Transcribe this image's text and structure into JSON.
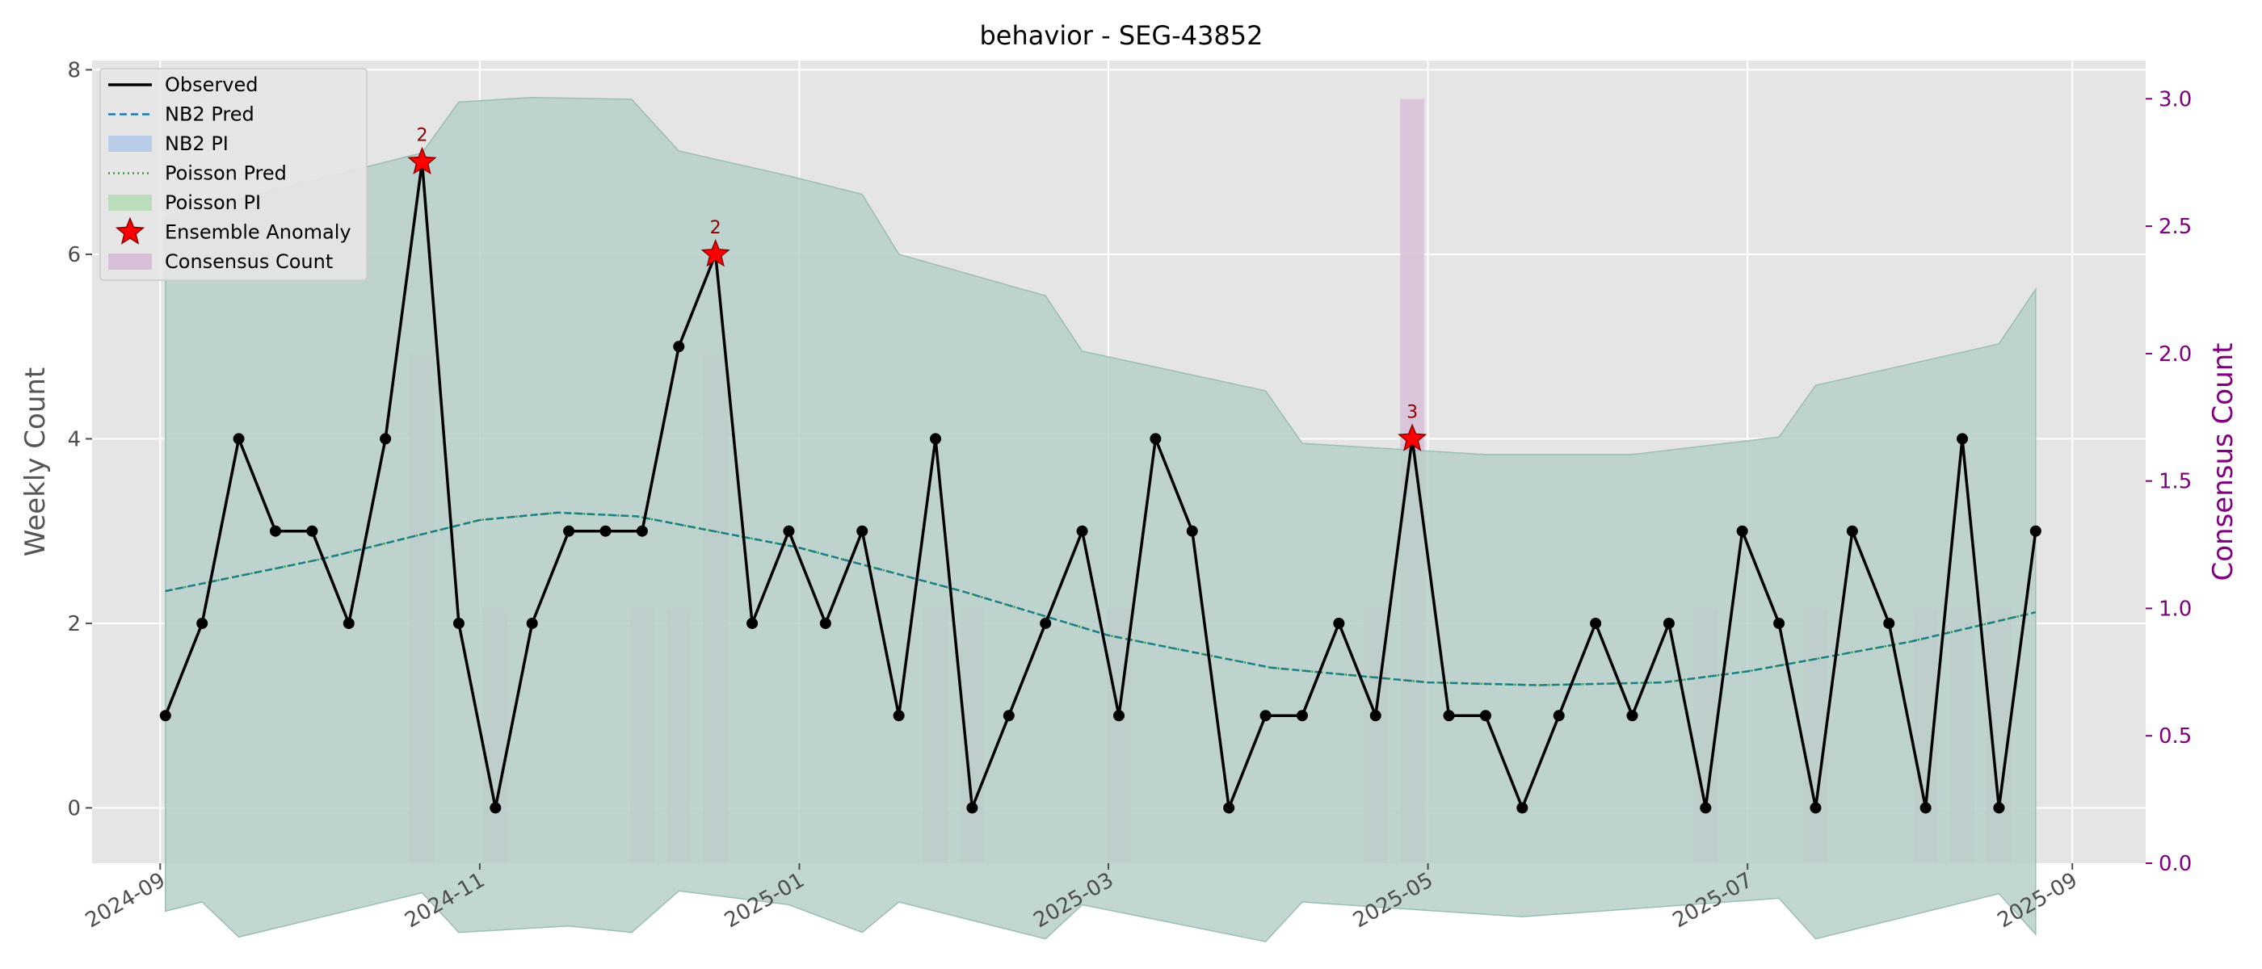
{
  "chart_data": {
    "type": "line",
    "title": "behavior - SEG-43852",
    "ylabel": "Weekly Count",
    "ylabel_right": "Consensus Count",
    "xlabel": "",
    "x_range": [
      "2024-08-19",
      "2025-09-15"
    ],
    "ylim": [
      -0.6,
      8.1
    ],
    "ylim_right": [
      0.0,
      3.15
    ],
    "x_ticks": [
      "2024-09",
      "2024-11",
      "2025-01",
      "2025-03",
      "2025-05",
      "2025-07",
      "2025-09"
    ],
    "y_ticks": [
      0,
      2,
      4,
      6,
      8
    ],
    "y_ticks_right": [
      "0.0",
      "0.5",
      "1.0",
      "1.5",
      "2.0",
      "2.5",
      "3.0"
    ],
    "grid": true,
    "legend_position": "top-left",
    "colors": {
      "observed": "#000000",
      "nb2_pred": "#1f77b4",
      "nb2_pi": "#aec7e8",
      "poisson_pred": "#2ca02c",
      "poisson_pi": "#b7dcb7",
      "band": "#b7cfca",
      "band_edge": "#9cbdb6",
      "pred_line": "#1a7f8a",
      "anomaly": "#ff0000",
      "consensus": "#d8bfd8",
      "right_axis": "#800080",
      "plot_bg": "#e5e5e5"
    },
    "legend": [
      "Observed",
      "NB2 Pred",
      "NB2 PI",
      "Poisson Pred",
      "Poisson PI",
      "Ensemble Anomaly",
      "Consensus Count"
    ],
    "series": [
      {
        "name": "Observed",
        "x": [
          "2024-09-02",
          "2024-09-09",
          "2024-09-16",
          "2024-09-23",
          "2024-09-30",
          "2024-10-07",
          "2024-10-14",
          "2024-10-21",
          "2024-10-28",
          "2024-11-04",
          "2024-11-11",
          "2024-11-18",
          "2024-11-25",
          "2024-12-02",
          "2024-12-09",
          "2024-12-16",
          "2024-12-23",
          "2024-12-30",
          "2025-01-06",
          "2025-01-13",
          "2025-01-20",
          "2025-01-27",
          "2025-02-03",
          "2025-02-10",
          "2025-02-17",
          "2025-02-24",
          "2025-03-03",
          "2025-03-10",
          "2025-03-17",
          "2025-03-24",
          "2025-03-31",
          "2025-04-07",
          "2025-04-14",
          "2025-04-21",
          "2025-04-28",
          "2025-05-05",
          "2025-05-12",
          "2025-05-19",
          "2025-05-26",
          "2025-06-02",
          "2025-06-09",
          "2025-06-16",
          "2025-06-23",
          "2025-06-30",
          "2025-07-07",
          "2025-07-14",
          "2025-07-21",
          "2025-07-28",
          "2025-08-04",
          "2025-08-11",
          "2025-08-18",
          "2025-08-25"
        ],
        "values": [
          1,
          2,
          4,
          3,
          3,
          2,
          4,
          7,
          2,
          0,
          2,
          3,
          3,
          3,
          5,
          6,
          2,
          3,
          2,
          3,
          1,
          4,
          0,
          1,
          2,
          3,
          1,
          4,
          3,
          0,
          1,
          1,
          2,
          1,
          4,
          1,
          1,
          0,
          1,
          2,
          1,
          2,
          0,
          3,
          2,
          0,
          3,
          2,
          0,
          4,
          0,
          3
        ]
      },
      {
        "name": "NB2 Pred",
        "x": [
          "2024-09-02",
          "2024-10-02",
          "2024-11-01",
          "2024-11-16",
          "2024-12-01",
          "2025-01-01",
          "2025-02-01",
          "2025-03-01",
          "2025-04-01",
          "2025-05-01",
          "2025-05-22",
          "2025-06-15",
          "2025-07-01",
          "2025-08-01",
          "2025-08-25"
        ],
        "values": [
          2.35,
          2.7,
          3.12,
          3.2,
          3.16,
          2.82,
          2.35,
          1.87,
          1.52,
          1.36,
          1.33,
          1.36,
          1.48,
          1.8,
          2.12
        ]
      },
      {
        "name": "Poisson Pred",
        "x": [
          "2024-09-02",
          "2024-10-02",
          "2024-11-01",
          "2024-11-16",
          "2024-12-01",
          "2025-01-01",
          "2025-02-01",
          "2025-03-01",
          "2025-04-01",
          "2025-05-01",
          "2025-05-22",
          "2025-06-15",
          "2025-07-01",
          "2025-08-01",
          "2025-08-25"
        ],
        "values": [
          2.35,
          2.7,
          3.12,
          3.2,
          3.16,
          2.82,
          2.35,
          1.87,
          1.52,
          1.36,
          1.33,
          1.36,
          1.48,
          1.8,
          2.12
        ]
      }
    ],
    "prediction_interval": {
      "upper": {
        "x": [
          "2024-09-02",
          "2024-10-21",
          "2024-10-28",
          "2024-11-11",
          "2024-11-30",
          "2024-12-09",
          "2024-12-30",
          "2025-01-13",
          "2025-01-20",
          "2025-02-17",
          "2025-02-24",
          "2025-03-31",
          "2025-04-07",
          "2025-05-12",
          "2025-06-09",
          "2025-07-07",
          "2025-07-14",
          "2025-08-18",
          "2025-08-25"
        ],
        "values": [
          6.4,
          7.1,
          7.65,
          7.7,
          7.68,
          7.12,
          6.85,
          6.65,
          6.0,
          5.55,
          4.95,
          4.52,
          3.95,
          3.83,
          3.83,
          4.02,
          4.58,
          5.03,
          5.62
        ]
      },
      "lower": {
        "x": [
          "2024-09-02",
          "2024-09-09",
          "2024-09-16",
          "2024-10-21",
          "2024-10-28",
          "2024-11-18",
          "2024-11-30",
          "2024-12-09",
          "2024-12-30",
          "2025-01-13",
          "2025-01-20",
          "2025-02-17",
          "2025-02-24",
          "2025-03-31",
          "2025-04-07",
          "2025-05-19",
          "2025-07-07",
          "2025-07-14",
          "2025-08-18",
          "2025-08-25"
        ],
        "values": [
          -1.12,
          -1.02,
          -1.4,
          -0.92,
          -1.35,
          -1.28,
          -1.35,
          -0.9,
          -1.05,
          -1.35,
          -1.02,
          -1.42,
          -1.05,
          -1.45,
          -1.02,
          -1.18,
          -0.98,
          -1.42,
          -0.93,
          -1.37
        ]
      }
    },
    "anomalies": [
      {
        "x": "2024-10-21",
        "value": 7,
        "label": "2"
      },
      {
        "x": "2024-12-16",
        "value": 6,
        "label": "2"
      },
      {
        "x": "2025-04-28",
        "value": 4,
        "label": "3"
      }
    ],
    "consensus_count": {
      "x": [
        "2024-10-21",
        "2024-11-04",
        "2024-12-02",
        "2024-12-09",
        "2024-12-16",
        "2025-01-27",
        "2025-02-03",
        "2025-03-03",
        "2025-04-21",
        "2025-04-28",
        "2025-06-23",
        "2025-07-14",
        "2025-08-04",
        "2025-08-11",
        "2025-08-18"
      ],
      "values": [
        2,
        1,
        1,
        1,
        2,
        1,
        1,
        1,
        1,
        3,
        1,
        1,
        1,
        1,
        1
      ]
    }
  }
}
